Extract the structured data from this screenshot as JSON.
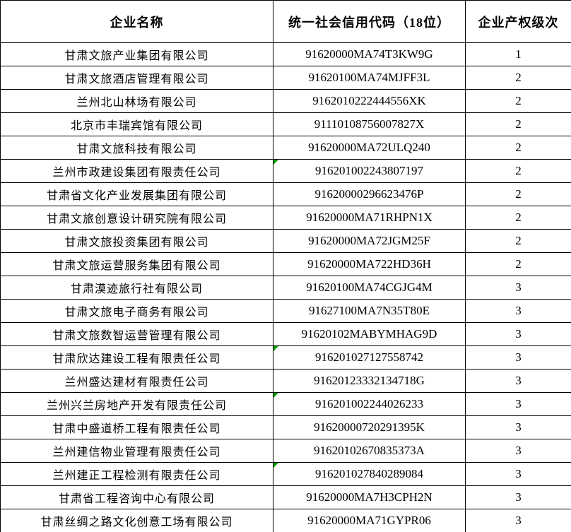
{
  "table": {
    "columns": [
      {
        "label": "企业名称"
      },
      {
        "label": "统一社会信用代码（18位）"
      },
      {
        "label": "企业产权级次"
      }
    ],
    "rows": [
      {
        "name": "甘肃文旅产业集团有限公司",
        "code": "91620000MA74T3KW9G",
        "level": "1",
        "text_flag": false
      },
      {
        "name": "甘肃文旅酒店管理有限公司",
        "code": "91620100MA74MJFF3L",
        "level": "2",
        "text_flag": false
      },
      {
        "name": "兰州北山林场有限公司",
        "code": "9162010222444556XK",
        "level": "2",
        "text_flag": false
      },
      {
        "name": "北京市丰瑞宾馆有限公司",
        "code": "91110108756007827X",
        "level": "2",
        "text_flag": false
      },
      {
        "name": "甘肃文旅科技有限公司",
        "code": "91620000MA72ULQ240",
        "level": "2",
        "text_flag": false
      },
      {
        "name": "兰州市政建设集团有限责任公司",
        "code": "916201002243807197",
        "level": "2",
        "text_flag": true
      },
      {
        "name": "甘肃省文化产业发展集团有限公司",
        "code": "91620000296623476P",
        "level": "2",
        "text_flag": false
      },
      {
        "name": "甘肃文旅创意设计研究院有限公司",
        "code": "91620000MA71RHPN1X",
        "level": "2",
        "text_flag": false
      },
      {
        "name": "甘肃文旅投资集团有限公司",
        "code": "91620000MA72JGM25F",
        "level": "2",
        "text_flag": false
      },
      {
        "name": "甘肃文旅运营服务集团有限公司",
        "code": "91620000MA722HD36H",
        "level": "2",
        "text_flag": false
      },
      {
        "name": "甘肃漠迹旅行社有限公司",
        "code": "91620100MA74CGJG4M",
        "level": "3",
        "text_flag": false
      },
      {
        "name": "甘肃文旅电子商务有限公司",
        "code": "91627100MA7N35T80E",
        "level": "3",
        "text_flag": false
      },
      {
        "name": "甘肃文旅数智运营管理有限公司",
        "code": "91620102MABYMHAG9D",
        "level": "3",
        "text_flag": false
      },
      {
        "name": "甘肃欣达建设工程有限责任公司",
        "code": "916201027127558742",
        "level": "3",
        "text_flag": true
      },
      {
        "name": "兰州盛达建材有限责任公司",
        "code": "91620123332134718G",
        "level": "3",
        "text_flag": false
      },
      {
        "name": "兰州兴兰房地产开发有限责任公司",
        "code": "916201002244026233",
        "level": "3",
        "text_flag": true
      },
      {
        "name": "甘肃中盛道桥工程有限责任公司",
        "code": "91620000720291395K",
        "level": "3",
        "text_flag": false
      },
      {
        "name": "兰州建信物业管理有限责任公司",
        "code": "91620102670835373A",
        "level": "3",
        "text_flag": false
      },
      {
        "name": "兰州建正工程检测有限责任公司",
        "code": "916201027840289084",
        "level": "3",
        "text_flag": true
      },
      {
        "name": "甘肃省工程咨询中心有限公司",
        "code": "91620000MA7H3CPH2N",
        "level": "3",
        "text_flag": false
      },
      {
        "name": "甘肃丝绸之路文化创意工场有限公司",
        "code": "91620000MA71GYPR06",
        "level": "3",
        "text_flag": false
      }
    ]
  },
  "colors": {
    "border": "#000000",
    "text": "#000000",
    "background": "#ffffff",
    "flag_green": "#00a000"
  }
}
